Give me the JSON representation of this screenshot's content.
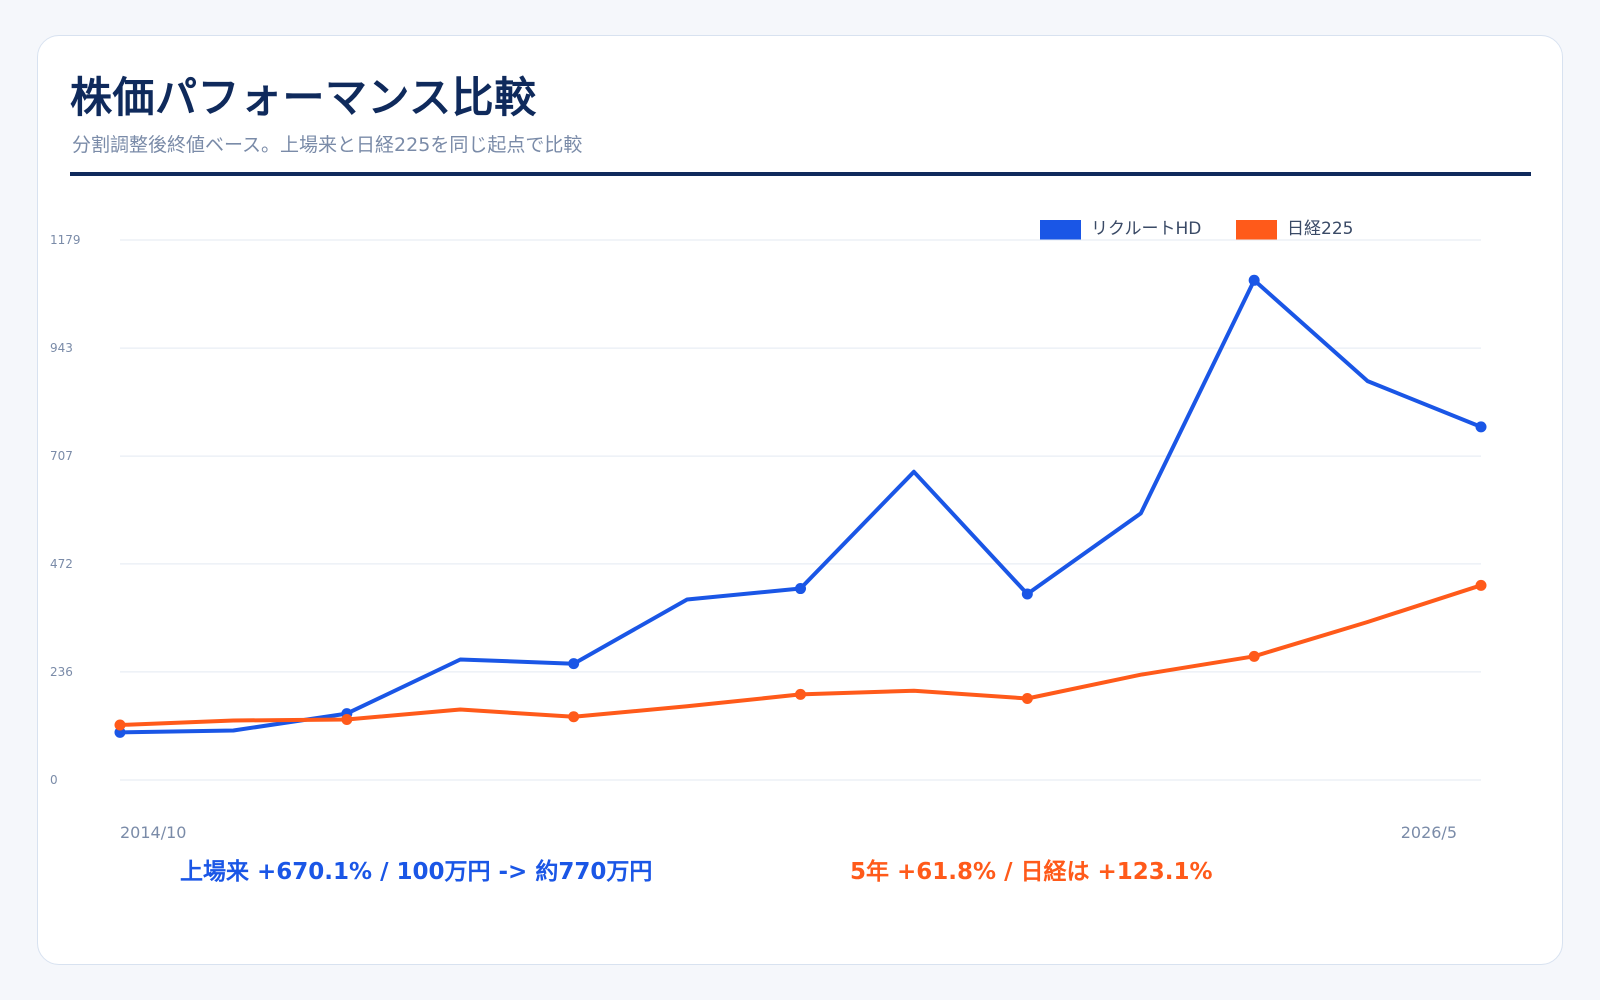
{
  "header": {
    "title": "株価パフォーマンス比較",
    "subtitle": "分割調整後終値ベース。上場来と日経225を同じ起点で比較"
  },
  "legend": {
    "items": [
      {
        "label": "リクルートHD",
        "color": "#1a56e6"
      },
      {
        "label": "日経225",
        "color": "#ff5a1a"
      }
    ]
  },
  "summary": {
    "left": "上場来 +670.1% / 100万円 -> 約770万円",
    "right": "5年 +61.8% / 日経は +123.1%",
    "left_color": "#1a56e6",
    "right_color": "#ff5a1a"
  },
  "chart_data": {
    "type": "line",
    "x_start_label": "2014/10",
    "x_end_label": "2026/5",
    "y_ticks": [
      0,
      236,
      472,
      707,
      943,
      1179
    ],
    "ylim": [
      0,
      1179
    ],
    "grid": true,
    "legend_position": "top-right",
    "series": [
      {
        "name": "リクルートHD",
        "color": "#1a56e6",
        "values": [
          104,
          108,
          145,
          263,
          254,
          394,
          418,
          673,
          406,
          582,
          1091,
          871,
          771
        ],
        "marker_indices": [
          0,
          2,
          4,
          6,
          8,
          10,
          12
        ]
      },
      {
        "name": "日経225",
        "color": "#ff5a1a",
        "values": [
          120,
          130,
          132,
          154,
          138,
          161,
          187,
          195,
          178,
          230,
          270,
          345,
          425
        ],
        "marker_indices": [
          0,
          2,
          4,
          6,
          8,
          10,
          12
        ]
      }
    ]
  }
}
